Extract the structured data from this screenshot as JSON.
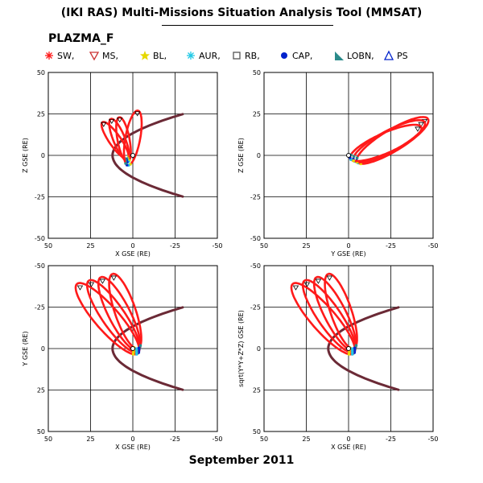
{
  "header": {
    "title": "(IKI RAS) Multi-Missions Situation Analysis Tool (MMSAT)",
    "subtitle": "PLAZMA_F"
  },
  "footer": {
    "date": "September 2011"
  },
  "colors": {
    "trajectory": "#ff1a1a",
    "magnetopause_bowshock": "#6b2a36",
    "magnetosheath_marker": "#cc3333",
    "bl": "#e6d800",
    "aur": "#20c8e6",
    "cap": "#0022cc",
    "lobn": "#2a8a8a",
    "grid": "#000000"
  },
  "legend": [
    {
      "label": "SW,",
      "symbol": "asterisk",
      "color": "#ff1a1a"
    },
    {
      "label": "MS,",
      "symbol": "triangle-down",
      "color": "#cc3333"
    },
    {
      "label": "BL,",
      "symbol": "star",
      "color": "#e6d800"
    },
    {
      "label": "AUR,",
      "symbol": "asterisk",
      "color": "#20c8e6"
    },
    {
      "label": "RB,",
      "symbol": "square-open",
      "color": "#555555"
    },
    {
      "label": "CAP,",
      "symbol": "circle-filled",
      "color": "#0022cc"
    },
    {
      "label": "LOBN,",
      "symbol": "triangle-filled",
      "color": "#2a8a8a"
    },
    {
      "label": "PS",
      "symbol": "triangle-open",
      "color": "#0022cc"
    }
  ],
  "chart_data": [
    {
      "type": "line",
      "panel": "top-left",
      "xlabel": "X GSE (RE)",
      "ylabel": "Z GSE (RE)",
      "xlim": [
        50,
        -50
      ],
      "ylim": [
        -50,
        50
      ],
      "xticks": [
        50,
        25,
        0,
        -25,
        -50
      ],
      "yticks": [
        -50,
        -25,
        0,
        25,
        50
      ],
      "grid": true,
      "orbits": [
        {
          "apogee": [
            18,
            20
          ],
          "perigee": [
            3,
            -2
          ]
        },
        {
          "apogee": [
            13,
            22
          ],
          "perigee": [
            3,
            -3
          ]
        },
        {
          "apogee": [
            8,
            23
          ],
          "perigee": [
            3,
            -4
          ]
        },
        {
          "apogee": [
            -3,
            27
          ],
          "perigee": [
            3,
            -6
          ]
        }
      ],
      "boundary": {
        "nose_x": 12,
        "tail_x": -30,
        "tail_y": 25
      }
    },
    {
      "type": "line",
      "panel": "top-right",
      "xlabel": "Y GSE (RE)",
      "ylabel": "Z GSE (RE)",
      "xlim": [
        50,
        -50
      ],
      "ylim": [
        -50,
        50
      ],
      "xticks": [
        50,
        25,
        0,
        -25,
        -50
      ],
      "yticks": [
        -50,
        -25,
        0,
        25,
        50
      ],
      "grid": true,
      "orbits": [
        {
          "apogee": [
            -47,
            22
          ],
          "perigee": [
            -5,
            -4
          ]
        },
        {
          "apogee": [
            -45,
            20
          ],
          "perigee": [
            -3,
            -3
          ]
        },
        {
          "apogee": [
            -43,
            17
          ],
          "perigee": [
            -1,
            -2
          ]
        }
      ]
    },
    {
      "type": "line",
      "panel": "bottom-left",
      "xlabel": "X GSE (RE)",
      "ylabel": "Y GSE (RE)",
      "xlim": [
        50,
        -50
      ],
      "ylim": [
        -50,
        50
      ],
      "xticks": [
        50,
        25,
        0,
        -25,
        -50
      ],
      "yticks": [
        -50,
        -25,
        0,
        25,
        50
      ],
      "grid": true,
      "y_inverted": true,
      "orbits": [
        {
          "apogee": [
            33,
            -39
          ],
          "perigee": [
            -3,
            3
          ]
        },
        {
          "apogee": [
            26,
            -41
          ],
          "perigee": [
            -3,
            2
          ]
        },
        {
          "apogee": [
            19,
            -43
          ],
          "perigee": [
            -3,
            1
          ]
        },
        {
          "apogee": [
            12,
            -45
          ],
          "perigee": [
            -3,
            0
          ]
        }
      ],
      "boundary": {
        "nose_x": 12,
        "tail_x": -30,
        "tail_y": 25
      }
    },
    {
      "type": "line",
      "panel": "bottom-right",
      "xlabel": "X GSE (RE)",
      "ylabel": "sqrt(Y*Y+Z*Z) GSE (RE)",
      "xlim": [
        50,
        -50
      ],
      "ylim": [
        -50,
        50
      ],
      "xticks": [
        50,
        25,
        0,
        -25,
        -50
      ],
      "yticks": [
        -50,
        -25,
        0,
        25,
        50
      ],
      "grid": true,
      "y_inverted": true,
      "orbits": [
        {
          "apogee": [
            33,
            -39
          ],
          "perigee": [
            -3,
            3
          ]
        },
        {
          "apogee": [
            26,
            -41
          ],
          "perigee": [
            -3,
            2
          ]
        },
        {
          "apogee": [
            19,
            -43
          ],
          "perigee": [
            -3,
            1
          ]
        },
        {
          "apogee": [
            12,
            -45
          ],
          "perigee": [
            -3,
            0
          ]
        }
      ],
      "boundary": {
        "nose_x": 12,
        "tail_x": -30,
        "tail_y": 25
      }
    }
  ]
}
